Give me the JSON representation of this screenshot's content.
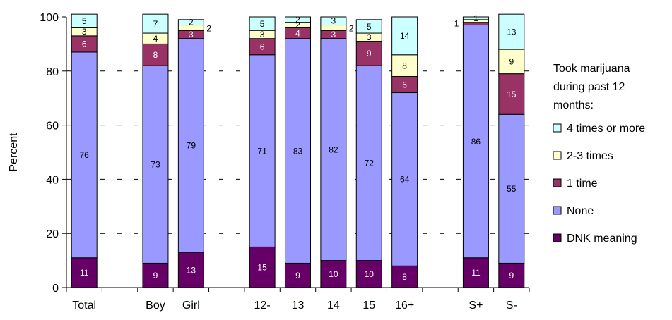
{
  "chart_data": {
    "type": "bar",
    "stacked": true,
    "ylabel": "Percent",
    "ylim": [
      0,
      100
    ],
    "yticks": [
      "0",
      "20",
      "40",
      "60",
      "80",
      "100"
    ],
    "grid": "dashed horizontal",
    "legend_position": "right",
    "legend_title": "Took marijuana during past 12 months:",
    "legend_title_lines": [
      "Took marijuana",
      "during past 12",
      "months:"
    ],
    "categories": [
      "Total",
      "",
      "Boy",
      "Girl",
      "",
      "12-",
      "13",
      "14",
      "15",
      "16+",
      "",
      "S+",
      "S-"
    ],
    "series": [
      {
        "name": "DNK meaning",
        "color": "#660066",
        "label_color": "#ffffff",
        "values": [
          11,
          null,
          9,
          13,
          null,
          15,
          9,
          10,
          10,
          8,
          null,
          11,
          9
        ],
        "labels": [
          "11",
          "",
          "9",
          "13",
          "",
          "15",
          "9",
          "10",
          "10",
          "8",
          "",
          "11",
          "9"
        ]
      },
      {
        "name": "None",
        "color": "#9999ff",
        "label_color": "#000000",
        "values": [
          76,
          null,
          73,
          79,
          null,
          71,
          83,
          82,
          72,
          64,
          null,
          86,
          55
        ],
        "labels": [
          "76",
          "",
          "73",
          "79",
          "",
          "71",
          "83",
          "82",
          "72",
          "64",
          "",
          "86",
          "55"
        ]
      },
      {
        "name": "1 time",
        "color": "#993366",
        "label_color": "#ffffff",
        "values": [
          6,
          null,
          8,
          3,
          null,
          6,
          4,
          3,
          9,
          6,
          null,
          1,
          15
        ],
        "labels": [
          "6",
          "",
          "8",
          "3",
          "",
          "6",
          "4",
          "3",
          "9",
          "6",
          "",
          "",
          "15"
        ]
      },
      {
        "name": "2-3 times",
        "color": "#ffffcc",
        "label_color": "#000000",
        "values": [
          3,
          null,
          4,
          2,
          null,
          3,
          2,
          2,
          3,
          8,
          null,
          1,
          9
        ],
        "labels": [
          "3",
          "",
          "4",
          "",
          "",
          "3",
          "",
          "",
          "3",
          "8",
          "",
          "",
          "9"
        ]
      },
      {
        "name": "4 times or more",
        "color": "#ccffff",
        "label_color": "#000000",
        "values": [
          5,
          null,
          7,
          2,
          null,
          5,
          2,
          3,
          5,
          14,
          null,
          1,
          13
        ],
        "labels": [
          "5",
          "",
          "7",
          "2",
          "",
          "5",
          "2",
          "3",
          "5",
          "14",
          "",
          "1",
          "13"
        ]
      }
    ],
    "outside_labels": [
      {
        "category": "Girl",
        "series": "2-3 times",
        "text": "2"
      },
      {
        "category": "14",
        "series": "2-3 times",
        "text": "2"
      },
      {
        "category": "13",
        "series": "2-3 times",
        "text": "2"
      },
      {
        "category": "S+",
        "series": "1 time",
        "text": "1"
      }
    ]
  }
}
